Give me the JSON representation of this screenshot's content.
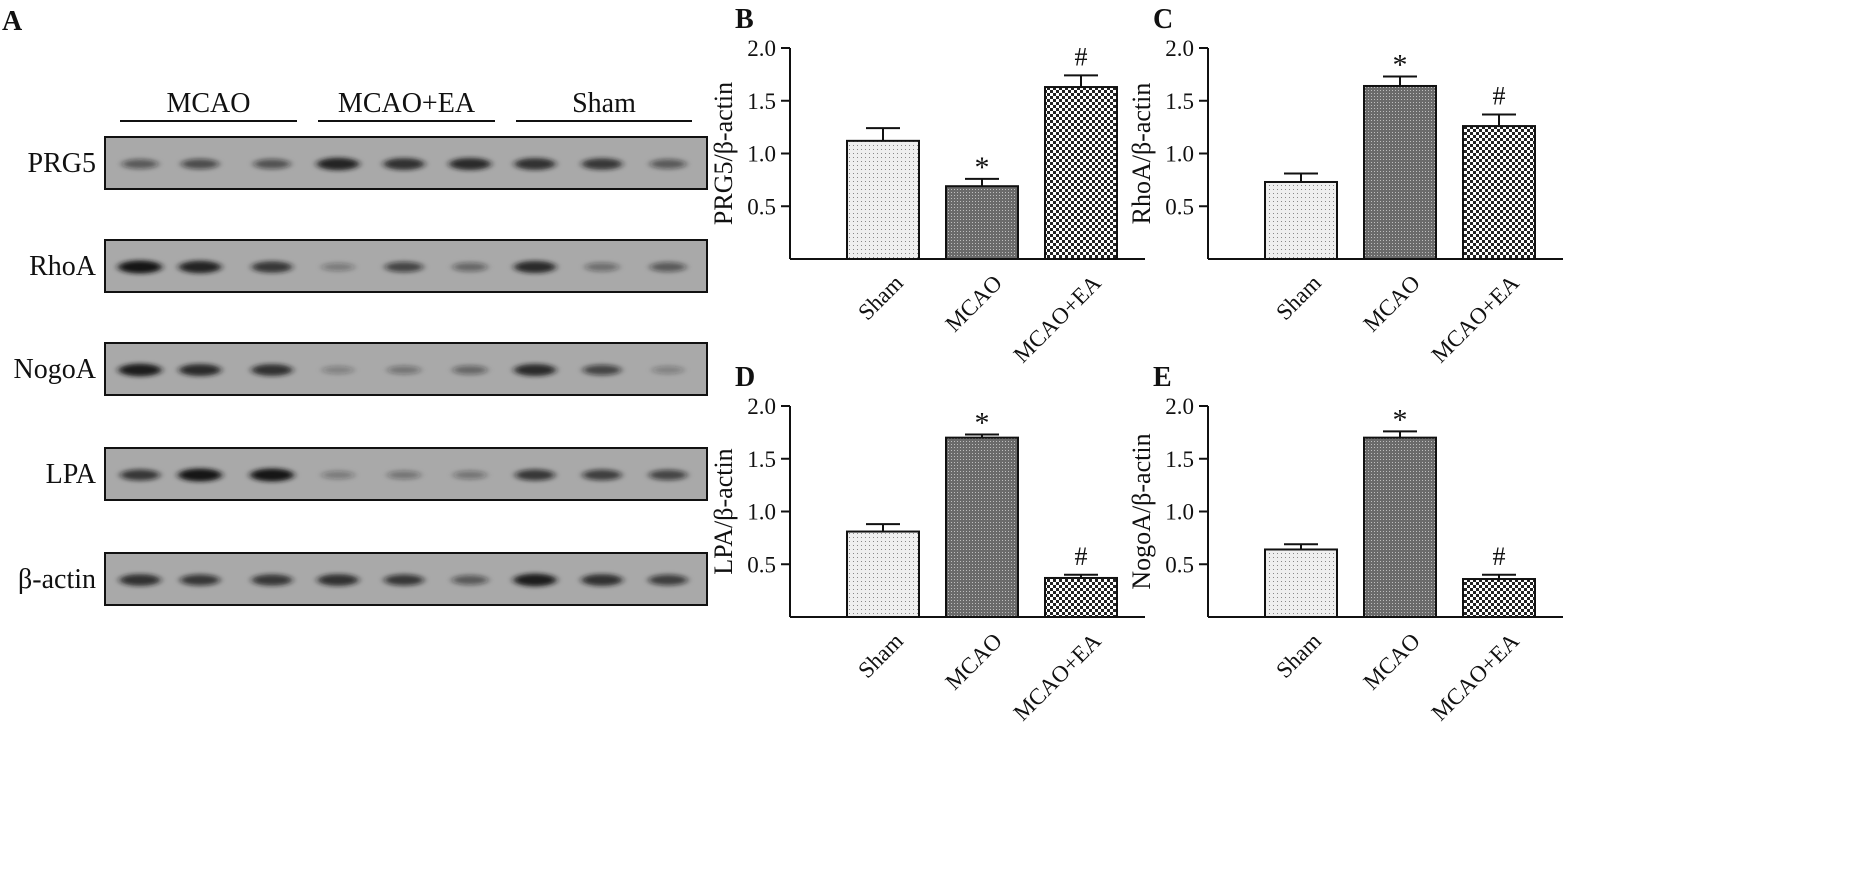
{
  "panel_a": {
    "letter": "A",
    "groups": [
      "MCAO",
      "MCAO+EA",
      "Sham"
    ],
    "blots": [
      {
        "label": "PRG5",
        "bands": [
          0.45,
          0.55,
          0.5,
          0.9,
          0.8,
          0.85,
          0.8,
          0.75,
          0.45
        ]
      },
      {
        "label": "RhoA",
        "bands": [
          1.0,
          0.9,
          0.75,
          0.2,
          0.6,
          0.35,
          0.85,
          0.3,
          0.45
        ]
      },
      {
        "label": "NogoA",
        "bands": [
          0.95,
          0.85,
          0.8,
          0.15,
          0.25,
          0.35,
          0.85,
          0.6,
          0.15
        ]
      },
      {
        "label": "LPA",
        "bands": [
          0.7,
          1.0,
          1.0,
          0.2,
          0.25,
          0.25,
          0.7,
          0.65,
          0.6
        ]
      },
      {
        "label": "β-actin",
        "bands": [
          0.8,
          0.7,
          0.75,
          0.8,
          0.7,
          0.45,
          0.95,
          0.8,
          0.65
        ]
      }
    ]
  },
  "chart_data": [
    {
      "letter": "B",
      "type": "bar",
      "categories": [
        "Sham",
        "MCAO",
        "MCAO+EA"
      ],
      "values": [
        1.12,
        0.69,
        1.63
      ],
      "errors": [
        0.12,
        0.07,
        0.11
      ],
      "marks": [
        "",
        "*",
        "#"
      ],
      "ylabel": "PRG5/β-actin",
      "ylim": [
        0,
        2.0
      ],
      "yticks": [
        "0.5",
        "1.0",
        "1.5",
        "2.0"
      ]
    },
    {
      "letter": "C",
      "type": "bar",
      "categories": [
        "Sham",
        "MCAO",
        "MCAO+EA"
      ],
      "values": [
        0.73,
        1.64,
        1.26
      ],
      "errors": [
        0.08,
        0.09,
        0.11
      ],
      "marks": [
        "",
        "*",
        "#"
      ],
      "ylabel": "RhoA/β-actin",
      "ylim": [
        0,
        2.0
      ],
      "yticks": [
        "0.5",
        "1.0",
        "1.5",
        "2.0"
      ]
    },
    {
      "letter": "D",
      "type": "bar",
      "categories": [
        "Sham",
        "MCAO",
        "MCAO+EA"
      ],
      "values": [
        0.81,
        1.7,
        0.37
      ],
      "errors": [
        0.07,
        0.03,
        0.03
      ],
      "marks": [
        "",
        "*",
        "#"
      ],
      "ylabel": "LPA/β-actin",
      "ylim": [
        0,
        2.0
      ],
      "yticks": [
        "0.5",
        "1.0",
        "1.5",
        "2.0"
      ]
    },
    {
      "letter": "E",
      "type": "bar",
      "categories": [
        "Sham",
        "MCAO",
        "MCAO+EA"
      ],
      "values": [
        0.64,
        1.7,
        0.36
      ],
      "errors": [
        0.05,
        0.06,
        0.04
      ],
      "marks": [
        "",
        "*",
        "#"
      ],
      "ylabel": "NogoA/β-actin",
      "ylim": [
        0,
        2.0
      ],
      "yticks": [
        "0.5",
        "1.0",
        "1.5",
        "2.0"
      ]
    }
  ]
}
